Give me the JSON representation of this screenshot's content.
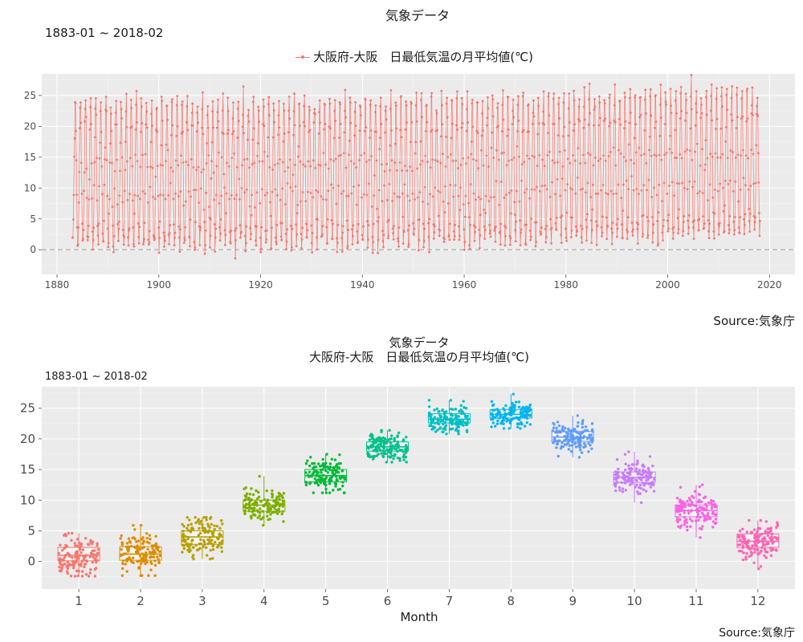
{
  "chart_data": [
    {
      "type": "line",
      "title": "気象データ",
      "subtitle": "1883-01 ~ 2018-02",
      "series": [
        {
          "name": "大阪府-大阪　日最低気温の月平均値(℃)",
          "color": "#f8766d",
          "x_start": "1883-01",
          "x_end": "2018-02",
          "frequency": "monthly",
          "seasonal_monthly_means": [
            1.1,
            1.4,
            4.0,
            9.3,
            14.0,
            18.7,
            23.3,
            24.1,
            20.4,
            13.9,
            8.3,
            3.4
          ],
          "summer_peak_range": [
            21.5,
            27.5
          ],
          "winter_trough_range": [
            -2.5,
            5.0
          ]
        }
      ],
      "xlim": [
        1877,
        2025
      ],
      "ylim": [
        -4,
        28.5
      ],
      "xticks": [
        1880,
        1900,
        1920,
        1940,
        1960,
        1980,
        2000,
        2020
      ],
      "yticks": [
        0,
        5,
        10,
        15,
        20,
        25
      ],
      "reference_line": {
        "y": 0,
        "style": "dashed",
        "color": "#bdbdbd"
      },
      "legend_position": "top",
      "grid": true,
      "source": "Source:気象庁"
    },
    {
      "type": "boxplot",
      "title": "気象データ",
      "subtitle": "大阪府-大阪　日最低気温の月平均値(℃)",
      "period": "1883-01 ~ 2018-02",
      "xlabel": "Month",
      "categories": [
        "1",
        "2",
        "3",
        "4",
        "5",
        "6",
        "7",
        "8",
        "9",
        "10",
        "11",
        "12"
      ],
      "colors": [
        "#f8766d",
        "#de8c00",
        "#b79f00",
        "#7cae00",
        "#00ba38",
        "#00c08b",
        "#00bfc4",
        "#00b4f0",
        "#619cff",
        "#c77cff",
        "#f564e3",
        "#ff64b0"
      ],
      "boxes": [
        {
          "q1": 0.1,
          "median": 1.0,
          "q3": 2.3,
          "min": -2.4,
          "max": 4.6
        },
        {
          "q1": 0.2,
          "median": 1.2,
          "q3": 2.4,
          "min": -2.3,
          "max": 5.9
        },
        {
          "q1": 2.8,
          "median": 4.0,
          "q3": 5.0,
          "min": 0.4,
          "max": 7.2
        },
        {
          "q1": 8.2,
          "median": 9.2,
          "q3": 10.0,
          "min": 5.9,
          "max": 13.9
        },
        {
          "q1": 13.0,
          "median": 14.0,
          "q3": 15.0,
          "min": 11.2,
          "max": 17.5
        },
        {
          "q1": 18.0,
          "median": 18.7,
          "q3": 19.5,
          "min": 16.2,
          "max": 21.4
        },
        {
          "q1": 22.6,
          "median": 23.2,
          "q3": 24.1,
          "min": 20.8,
          "max": 26.3
        },
        {
          "q1": 23.4,
          "median": 24.0,
          "q3": 24.8,
          "min": 21.7,
          "max": 27.3
        },
        {
          "q1": 19.6,
          "median": 20.3,
          "q3": 21.2,
          "min": 17.0,
          "max": 23.8
        },
        {
          "q1": 12.9,
          "median": 13.7,
          "q3": 14.6,
          "min": 9.6,
          "max": 17.9
        },
        {
          "q1": 7.3,
          "median": 8.3,
          "q3": 9.2,
          "min": 3.9,
          "max": 12.5
        },
        {
          "q1": 2.3,
          "median": 3.3,
          "q3": 4.5,
          "min": -1.2,
          "max": 6.7
        }
      ],
      "points_per_month": 135,
      "ylim": [
        -4.5,
        28.5
      ],
      "yticks": [
        0,
        5,
        10,
        15,
        20,
        25
      ],
      "grid": true,
      "legend_position": "none",
      "source": "Source:気象庁"
    }
  ]
}
